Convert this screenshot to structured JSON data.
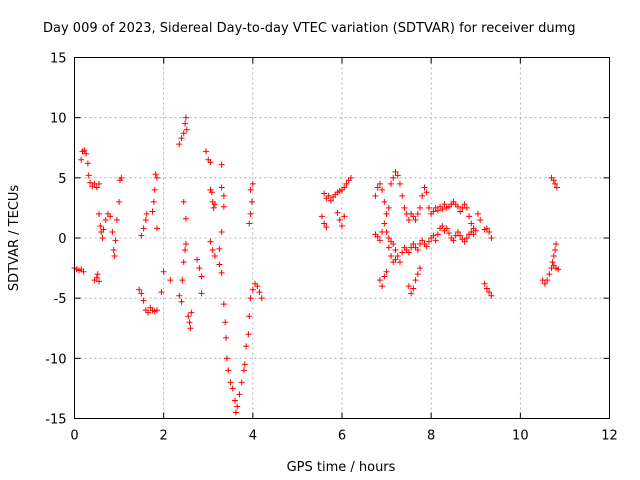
{
  "chart_data": {
    "type": "scatter",
    "title": "Day 009 of 2023, Sidereal Day-to-day VTEC variation (SDTVAR) for receiver dumg",
    "xlabel": "GPS time / hours",
    "ylabel": "SDTVAR / TECUs",
    "xlim": [
      0,
      12
    ],
    "ylim": [
      -15,
      15
    ],
    "xticks": [
      0,
      2,
      4,
      6,
      8,
      10,
      12
    ],
    "yticks": [
      -15,
      -10,
      -5,
      0,
      5,
      10,
      15
    ],
    "grid": true,
    "marker": "+",
    "color": "#ff0000",
    "series": [
      {
        "name": "SDTVAR",
        "points": [
          [
            0.0,
            -2.5
          ],
          [
            0.05,
            -2.6
          ],
          [
            0.1,
            -2.7
          ],
          [
            0.15,
            -2.6
          ],
          [
            0.2,
            -2.8
          ],
          [
            0.15,
            6.5
          ],
          [
            0.18,
            7.2
          ],
          [
            0.22,
            7.3
          ],
          [
            0.26,
            7.0
          ],
          [
            0.3,
            6.2
          ],
          [
            0.32,
            5.2
          ],
          [
            0.35,
            4.6
          ],
          [
            0.4,
            4.3
          ],
          [
            0.45,
            4.5
          ],
          [
            0.5,
            4.2
          ],
          [
            0.55,
            4.5
          ],
          [
            0.45,
            -3.5
          ],
          [
            0.5,
            -3.3
          ],
          [
            0.52,
            -3.0
          ],
          [
            0.55,
            -3.6
          ],
          [
            0.55,
            2.0
          ],
          [
            0.58,
            1.0
          ],
          [
            0.6,
            0.5
          ],
          [
            0.63,
            0.0
          ],
          [
            0.65,
            0.7
          ],
          [
            0.7,
            1.5
          ],
          [
            0.75,
            2.0
          ],
          [
            0.8,
            1.8
          ],
          [
            0.85,
            0.5
          ],
          [
            0.88,
            -1.0
          ],
          [
            0.9,
            -1.5
          ],
          [
            0.92,
            -0.2
          ],
          [
            0.95,
            1.5
          ],
          [
            1.0,
            3.0
          ],
          [
            1.02,
            4.8
          ],
          [
            1.05,
            5.0
          ],
          [
            1.45,
            -4.3
          ],
          [
            1.5,
            -4.6
          ],
          [
            1.55,
            -5.2
          ],
          [
            1.6,
            -6.0
          ],
          [
            1.65,
            -6.2
          ],
          [
            1.7,
            -5.8
          ],
          [
            1.75,
            -6.0
          ],
          [
            1.8,
            -6.1
          ],
          [
            1.85,
            -6.0
          ],
          [
            1.5,
            0.2
          ],
          [
            1.55,
            0.8
          ],
          [
            1.6,
            1.5
          ],
          [
            1.62,
            2.0
          ],
          [
            1.75,
            2.2
          ],
          [
            1.78,
            3.0
          ],
          [
            1.8,
            4.0
          ],
          [
            1.82,
            5.3
          ],
          [
            1.85,
            5.0
          ],
          [
            1.85,
            0.8
          ],
          [
            1.95,
            -4.5
          ],
          [
            2.0,
            -2.8
          ],
          [
            2.15,
            -3.5
          ],
          [
            2.35,
            -4.8
          ],
          [
            2.4,
            -5.3
          ],
          [
            2.42,
            -3.5
          ],
          [
            2.45,
            -2.0
          ],
          [
            2.48,
            -1.0
          ],
          [
            2.5,
            -0.5
          ],
          [
            2.35,
            7.8
          ],
          [
            2.4,
            8.3
          ],
          [
            2.45,
            8.7
          ],
          [
            2.48,
            9.5
          ],
          [
            2.5,
            10.0
          ],
          [
            2.52,
            9.0
          ],
          [
            2.45,
            3.0
          ],
          [
            2.5,
            1.6
          ],
          [
            2.55,
            -6.5
          ],
          [
            2.58,
            -7.0
          ],
          [
            2.6,
            -7.5
          ],
          [
            2.62,
            -6.2
          ],
          [
            2.75,
            -1.8
          ],
          [
            2.8,
            -2.5
          ],
          [
            2.85,
            -3.2
          ],
          [
            2.85,
            -4.6
          ],
          [
            2.95,
            7.2
          ],
          [
            3.0,
            6.5
          ],
          [
            3.05,
            6.3
          ],
          [
            3.05,
            4.0
          ],
          [
            3.08,
            3.8
          ],
          [
            3.1,
            3.0
          ],
          [
            3.12,
            2.5
          ],
          [
            3.15,
            2.8
          ],
          [
            3.05,
            -0.3
          ],
          [
            3.1,
            -1.0
          ],
          [
            3.15,
            -1.5
          ],
          [
            3.3,
            6.1
          ],
          [
            3.3,
            4.2
          ],
          [
            3.35,
            3.5
          ],
          [
            3.35,
            2.6
          ],
          [
            3.3,
            0.5
          ],
          [
            3.25,
            -0.9
          ],
          [
            3.25,
            -2.2
          ],
          [
            3.3,
            -2.9
          ],
          [
            3.35,
            -5.5
          ],
          [
            3.38,
            -7.0
          ],
          [
            3.4,
            -8.3
          ],
          [
            3.42,
            -10.0
          ],
          [
            3.45,
            -11.0
          ],
          [
            3.5,
            -12.0
          ],
          [
            3.55,
            -12.5
          ],
          [
            3.6,
            -13.5
          ],
          [
            3.62,
            -14.5
          ],
          [
            3.65,
            -14.0
          ],
          [
            3.7,
            -13.0
          ],
          [
            3.75,
            -12.0
          ],
          [
            3.8,
            -11.0
          ],
          [
            3.82,
            -10.5
          ],
          [
            3.85,
            -9.0
          ],
          [
            3.9,
            -8.0
          ],
          [
            3.92,
            -6.5
          ],
          [
            3.95,
            -5.0
          ],
          [
            4.0,
            -4.3
          ],
          [
            4.05,
            -3.8
          ],
          [
            4.1,
            -4.0
          ],
          [
            4.15,
            -4.5
          ],
          [
            4.2,
            -5.0
          ],
          [
            3.95,
            4.0
          ],
          [
            4.0,
            4.5
          ],
          [
            3.98,
            3.0
          ],
          [
            3.95,
            2.0
          ],
          [
            3.92,
            1.2
          ],
          [
            5.55,
            1.8
          ],
          [
            5.6,
            1.2
          ],
          [
            5.65,
            0.9
          ],
          [
            5.6,
            3.7
          ],
          [
            5.65,
            3.3
          ],
          [
            5.7,
            3.5
          ],
          [
            5.75,
            3.1
          ],
          [
            5.8,
            3.4
          ],
          [
            5.85,
            3.6
          ],
          [
            5.9,
            3.8
          ],
          [
            5.95,
            3.9
          ],
          [
            6.0,
            4.0
          ],
          [
            6.05,
            4.2
          ],
          [
            6.1,
            4.5
          ],
          [
            6.15,
            4.8
          ],
          [
            6.2,
            5.0
          ],
          [
            5.9,
            2.1
          ],
          [
            5.95,
            1.5
          ],
          [
            6.0,
            1.0
          ],
          [
            6.05,
            1.8
          ],
          [
            6.75,
            0.3
          ],
          [
            6.8,
            0.1
          ],
          [
            6.85,
            -0.2
          ],
          [
            6.9,
            0.5
          ],
          [
            6.95,
            1.2
          ],
          [
            7.0,
            0.5
          ],
          [
            7.05,
            0.0
          ],
          [
            7.1,
            -0.3
          ],
          [
            7.15,
            -0.5
          ],
          [
            7.2,
            -1.0
          ],
          [
            7.25,
            -1.5
          ],
          [
            7.3,
            -2.0
          ],
          [
            7.35,
            -1.2
          ],
          [
            7.4,
            -0.8
          ],
          [
            7.45,
            -1.0
          ],
          [
            7.5,
            -1.2
          ],
          [
            7.55,
            -0.8
          ],
          [
            7.6,
            -0.5
          ],
          [
            7.65,
            -0.8
          ],
          [
            7.7,
            -1.0
          ],
          [
            7.75,
            -0.5
          ],
          [
            7.8,
            -0.2
          ],
          [
            7.85,
            -0.5
          ],
          [
            7.9,
            -0.7
          ],
          [
            7.95,
            -0.3
          ],
          [
            8.0,
            0.0
          ],
          [
            8.05,
            0.2
          ],
          [
            8.1,
            -0.2
          ],
          [
            8.15,
            0.3
          ],
          [
            8.2,
            0.8
          ],
          [
            8.25,
            1.0
          ],
          [
            8.3,
            0.6
          ],
          [
            8.35,
            0.8
          ],
          [
            8.4,
            0.4
          ],
          [
            8.45,
            0.0
          ],
          [
            8.5,
            -0.2
          ],
          [
            8.55,
            0.2
          ],
          [
            8.6,
            0.5
          ],
          [
            8.65,
            0.2
          ],
          [
            8.7,
            -0.1
          ],
          [
            8.75,
            -0.3
          ],
          [
            8.8,
            0.0
          ],
          [
            8.85,
            0.3
          ],
          [
            8.9,
            0.5
          ],
          [
            8.95,
            0.3
          ],
          [
            6.75,
            3.5
          ],
          [
            6.8,
            4.2
          ],
          [
            6.85,
            4.5
          ],
          [
            6.9,
            4.0
          ],
          [
            6.95,
            3.0
          ],
          [
            7.0,
            2.0
          ],
          [
            7.05,
            2.5
          ],
          [
            7.1,
            4.5
          ],
          [
            7.15,
            5.0
          ],
          [
            7.2,
            5.5
          ],
          [
            7.25,
            5.2
          ],
          [
            7.3,
            4.5
          ],
          [
            7.35,
            3.5
          ],
          [
            7.4,
            2.5
          ],
          [
            7.45,
            2.0
          ],
          [
            7.5,
            1.5
          ],
          [
            7.55,
            2.0
          ],
          [
            7.6,
            1.8
          ],
          [
            7.65,
            1.5
          ],
          [
            7.7,
            2.0
          ],
          [
            7.75,
            2.5
          ],
          [
            7.8,
            3.5
          ],
          [
            7.85,
            4.2
          ],
          [
            7.9,
            3.8
          ],
          [
            7.95,
            2.5
          ],
          [
            8.0,
            2.0
          ],
          [
            8.05,
            2.2
          ],
          [
            8.1,
            2.5
          ],
          [
            8.15,
            2.3
          ],
          [
            8.2,
            2.6
          ],
          [
            8.25,
            2.4
          ],
          [
            8.3,
            2.8
          ],
          [
            8.35,
            2.5
          ],
          [
            8.4,
            2.6
          ],
          [
            8.45,
            2.8
          ],
          [
            8.5,
            3.0
          ],
          [
            8.55,
            2.8
          ],
          [
            8.6,
            2.6
          ],
          [
            8.65,
            2.2
          ],
          [
            8.7,
            2.5
          ],
          [
            8.75,
            2.8
          ],
          [
            8.8,
            2.5
          ],
          [
            8.85,
            1.8
          ],
          [
            8.9,
            1.2
          ],
          [
            8.95,
            0.8
          ],
          [
            9.0,
            0.6
          ],
          [
            9.05,
            2.0
          ],
          [
            9.1,
            1.5
          ],
          [
            6.85,
            -3.5
          ],
          [
            6.9,
            -4.0
          ],
          [
            6.95,
            -3.2
          ],
          [
            7.0,
            -2.8
          ],
          [
            7.5,
            -4.0
          ],
          [
            7.55,
            -4.6
          ],
          [
            7.6,
            -4.2
          ],
          [
            7.65,
            -3.5
          ],
          [
            7.7,
            -3.0
          ],
          [
            7.75,
            -2.5
          ],
          [
            7.05,
            -0.8
          ],
          [
            7.1,
            -1.5
          ],
          [
            7.15,
            -2.0
          ],
          [
            7.2,
            -1.8
          ],
          [
            9.2,
            -3.8
          ],
          [
            9.25,
            -4.2
          ],
          [
            9.3,
            -4.5
          ],
          [
            9.35,
            -4.8
          ],
          [
            9.2,
            0.7
          ],
          [
            9.25,
            0.8
          ],
          [
            9.3,
            0.5
          ],
          [
            9.35,
            0.0
          ],
          [
            10.5,
            -3.5
          ],
          [
            10.55,
            -3.8
          ],
          [
            10.6,
            -3.5
          ],
          [
            10.65,
            -3.0
          ],
          [
            10.7,
            -2.5
          ],
          [
            10.72,
            -2.0
          ],
          [
            10.75,
            -1.5
          ],
          [
            10.78,
            -1.0
          ],
          [
            10.8,
            -0.5
          ],
          [
            10.75,
            -2.3
          ],
          [
            10.8,
            -2.5
          ],
          [
            10.85,
            -2.6
          ],
          [
            10.7,
            5.0
          ],
          [
            10.75,
            4.8
          ],
          [
            10.78,
            4.5
          ],
          [
            10.82,
            4.2
          ]
        ]
      }
    ]
  }
}
